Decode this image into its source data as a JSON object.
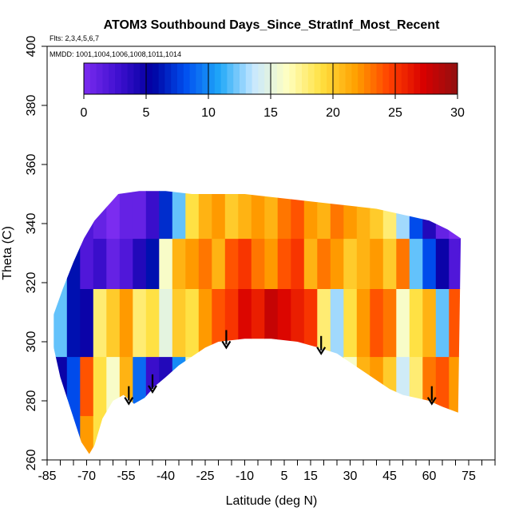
{
  "chart_data": {
    "type": "heatmap",
    "title": "ATOM3 Southbound Days_Since_StratInf_Most_Recent",
    "subtitle_flights": "Flts: 2,3,4,5,6,7",
    "subtitle_dates": "MMDD: 1001,1004,1006,1008,1011,1014",
    "xlabel": "Latitude (deg N)",
    "ylabel": "Theta (C)",
    "xlim": [
      -85,
      85
    ],
    "ylim": [
      260,
      400
    ],
    "x_tick_labels": [
      "-85",
      "-70",
      "-55",
      "-40",
      "-25",
      "-10",
      "5",
      "15",
      "30",
      "45",
      "60",
      "75"
    ],
    "y_tick_labels": [
      "260",
      "280",
      "300",
      "320",
      "340",
      "360",
      "380",
      "400"
    ],
    "colorbar": {
      "range": [
        0,
        30
      ],
      "tick_labels": [
        "0",
        "5",
        "10",
        "15",
        "20",
        "25",
        "30"
      ],
      "colors": [
        "#7b2cf0",
        "#4010d0",
        "#0000a0",
        "#0050f0",
        "#20a8f8",
        "#c8e8ff",
        "#ffffc0",
        "#ffe040",
        "#ffa000",
        "#ff4000",
        "#d80000",
        "#901010"
      ]
    },
    "upper_boundary": [
      [
        -83,
        308
      ],
      [
        -79,
        318
      ],
      [
        -75,
        327
      ],
      [
        -71,
        335
      ],
      [
        -67,
        341
      ],
      [
        -62,
        346
      ],
      [
        -58,
        350
      ],
      [
        -50,
        351
      ],
      [
        -40,
        351
      ],
      [
        -30,
        350
      ],
      [
        -20,
        350
      ],
      [
        -10,
        350
      ],
      [
        0,
        349
      ],
      [
        10,
        348
      ],
      [
        20,
        347
      ],
      [
        30,
        346
      ],
      [
        40,
        345
      ],
      [
        50,
        343
      ],
      [
        60,
        341
      ],
      [
        67,
        338
      ],
      [
        72,
        335
      ]
    ],
    "lower_boundary": [
      [
        -83,
        300
      ],
      [
        -80,
        288
      ],
      [
        -76,
        277
      ],
      [
        -72,
        266
      ],
      [
        -69,
        262
      ],
      [
        -67,
        265
      ],
      [
        -64,
        274
      ],
      [
        -60,
        280
      ],
      [
        -56,
        282
      ],
      [
        -52,
        279
      ],
      [
        -48,
        281
      ],
      [
        -44,
        285
      ],
      [
        -40,
        288
      ],
      [
        -35,
        292
      ],
      [
        -30,
        295
      ],
      [
        -25,
        298
      ],
      [
        -20,
        300
      ],
      [
        -10,
        301
      ],
      [
        0,
        301
      ],
      [
        10,
        300
      ],
      [
        18,
        298
      ],
      [
        25,
        296
      ],
      [
        30,
        293
      ],
      [
        35,
        290
      ],
      [
        40,
        287
      ],
      [
        45,
        284
      ],
      [
        50,
        282
      ],
      [
        55,
        281
      ],
      [
        60,
        280
      ],
      [
        65,
        278
      ],
      [
        71,
        276
      ]
    ],
    "field_bands": [
      {
        "lat": -80,
        "theta_bottom": 260,
        "value": 5
      },
      {
        "lat": -75,
        "theta_bottom": 260,
        "value": 8
      },
      {
        "lat": -70,
        "theta_bottom": 260,
        "value": 22
      },
      {
        "lat": -70,
        "theta_bottom": 275,
        "value": 24
      },
      {
        "lat": -65,
        "theta_bottom": 260,
        "value": 19
      },
      {
        "lat": -60,
        "theta_bottom": 260,
        "value": 16
      },
      {
        "lat": -55,
        "theta_bottom": 260,
        "value": 21
      },
      {
        "lat": -50,
        "theta_bottom": 260,
        "value": 9
      },
      {
        "lat": -45,
        "theta_bottom": 260,
        "value": 3
      },
      {
        "lat": -40,
        "theta_bottom": 260,
        "value": 4
      },
      {
        "lat": -35,
        "theta_bottom": 260,
        "value": 10
      },
      {
        "lat": -30,
        "theta_bottom": 260,
        "value": 17
      },
      {
        "lat": -25,
        "theta_bottom": 260,
        "value": 20
      },
      {
        "lat": -20,
        "theta_bottom": 260,
        "value": 21
      },
      {
        "lat": -15,
        "theta_bottom": 260,
        "value": 22
      },
      {
        "lat": -10,
        "theta_bottom": 260,
        "value": 24
      },
      {
        "lat": -5,
        "theta_bottom": 260,
        "value": 25
      },
      {
        "lat": 0,
        "theta_bottom": 260,
        "value": 27
      },
      {
        "lat": 5,
        "theta_bottom": 260,
        "value": 26
      },
      {
        "lat": 10,
        "theta_bottom": 260,
        "value": 25
      },
      {
        "lat": 15,
        "theta_bottom": 260,
        "value": 24
      },
      {
        "lat": 20,
        "theta_bottom": 260,
        "value": 22
      },
      {
        "lat": 25,
        "theta_bottom": 260,
        "value": 19
      },
      {
        "lat": 30,
        "theta_bottom": 260,
        "value": 16
      },
      {
        "lat": 35,
        "theta_bottom": 260,
        "value": 21
      },
      {
        "lat": 40,
        "theta_bottom": 260,
        "value": 22
      },
      {
        "lat": 45,
        "theta_bottom": 260,
        "value": 20
      },
      {
        "lat": 50,
        "theta_bottom": 260,
        "value": 14
      },
      {
        "lat": 55,
        "theta_bottom": 260,
        "value": 18
      },
      {
        "lat": 60,
        "theta_bottom": 260,
        "value": 23
      },
      {
        "lat": 65,
        "theta_bottom": 260,
        "value": 24
      },
      {
        "lat": 70,
        "theta_bottom": 260,
        "value": 22
      },
      {
        "lat": -80,
        "theta_bottom": 295,
        "value": 12
      },
      {
        "lat": -75,
        "theta_bottom": 295,
        "value": 6
      },
      {
        "lat": -70,
        "theta_bottom": 295,
        "value": 5
      },
      {
        "lat": -65,
        "theta_bottom": 295,
        "value": 18
      },
      {
        "lat": -60,
        "theta_bottom": 295,
        "value": 20
      },
      {
        "lat": -55,
        "theta_bottom": 295,
        "value": 22
      },
      {
        "lat": -50,
        "theta_bottom": 295,
        "value": 18
      },
      {
        "lat": -45,
        "theta_bottom": 295,
        "value": 19
      },
      {
        "lat": -40,
        "theta_bottom": 295,
        "value": 15
      },
      {
        "lat": -35,
        "theta_bottom": 295,
        "value": 20
      },
      {
        "lat": -30,
        "theta_bottom": 295,
        "value": 19
      },
      {
        "lat": -25,
        "theta_bottom": 295,
        "value": 22
      },
      {
        "lat": -20,
        "theta_bottom": 295,
        "value": 24
      },
      {
        "lat": -15,
        "theta_bottom": 295,
        "value": 25
      },
      {
        "lat": -10,
        "theta_bottom": 295,
        "value": 27
      },
      {
        "lat": -5,
        "theta_bottom": 295,
        "value": 26
      },
      {
        "lat": 0,
        "theta_bottom": 295,
        "value": 28
      },
      {
        "lat": 5,
        "theta_bottom": 295,
        "value": 27
      },
      {
        "lat": 10,
        "theta_bottom": 295,
        "value": 26
      },
      {
        "lat": 15,
        "theta_bottom": 295,
        "value": 25
      },
      {
        "lat": 20,
        "theta_bottom": 295,
        "value": 18
      },
      {
        "lat": 25,
        "theta_bottom": 295,
        "value": 13
      },
      {
        "lat": 30,
        "theta_bottom": 295,
        "value": 19
      },
      {
        "lat": 35,
        "theta_bottom": 295,
        "value": 22
      },
      {
        "lat": 40,
        "theta_bottom": 295,
        "value": 24
      },
      {
        "lat": 45,
        "theta_bottom": 295,
        "value": 23
      },
      {
        "lat": 50,
        "theta_bottom": 295,
        "value": 16
      },
      {
        "lat": 55,
        "theta_bottom": 295,
        "value": 19
      },
      {
        "lat": 60,
        "theta_bottom": 295,
        "value": 21
      },
      {
        "lat": 65,
        "theta_bottom": 295,
        "value": 12
      },
      {
        "lat": 70,
        "theta_bottom": 295,
        "value": 24
      },
      {
        "lat": -70,
        "theta_bottom": 318,
        "value": 2
      },
      {
        "lat": -65,
        "theta_bottom": 318,
        "value": 3
      },
      {
        "lat": -60,
        "theta_bottom": 318,
        "value": 1
      },
      {
        "lat": -55,
        "theta_bottom": 318,
        "value": 2
      },
      {
        "lat": -50,
        "theta_bottom": 318,
        "value": 4
      },
      {
        "lat": -45,
        "theta_bottom": 318,
        "value": 6
      },
      {
        "lat": -40,
        "theta_bottom": 318,
        "value": 16
      },
      {
        "lat": -35,
        "theta_bottom": 318,
        "value": 21
      },
      {
        "lat": -30,
        "theta_bottom": 318,
        "value": 22
      },
      {
        "lat": -25,
        "theta_bottom": 318,
        "value": 23
      },
      {
        "lat": -20,
        "theta_bottom": 318,
        "value": 21
      },
      {
        "lat": -15,
        "theta_bottom": 318,
        "value": 24
      },
      {
        "lat": -10,
        "theta_bottom": 318,
        "value": 25
      },
      {
        "lat": -5,
        "theta_bottom": 318,
        "value": 23
      },
      {
        "lat": 0,
        "theta_bottom": 318,
        "value": 22
      },
      {
        "lat": 5,
        "theta_bottom": 318,
        "value": 24
      },
      {
        "lat": 10,
        "theta_bottom": 318,
        "value": 25
      },
      {
        "lat": 15,
        "theta_bottom": 318,
        "value": 21
      },
      {
        "lat": 20,
        "theta_bottom": 318,
        "value": 23
      },
      {
        "lat": 25,
        "theta_bottom": 318,
        "value": 22
      },
      {
        "lat": 30,
        "theta_bottom": 318,
        "value": 20
      },
      {
        "lat": 35,
        "theta_bottom": 318,
        "value": 21
      },
      {
        "lat": 40,
        "theta_bottom": 318,
        "value": 22
      },
      {
        "lat": 45,
        "theta_bottom": 318,
        "value": 20
      },
      {
        "lat": 50,
        "theta_bottom": 318,
        "value": 23
      },
      {
        "lat": 55,
        "theta_bottom": 318,
        "value": 12
      },
      {
        "lat": 60,
        "theta_bottom": 318,
        "value": 8
      },
      {
        "lat": 65,
        "theta_bottom": 318,
        "value": 5
      },
      {
        "lat": 70,
        "theta_bottom": 318,
        "value": 2
      },
      {
        "lat": -65,
        "theta_bottom": 335,
        "value": 1
      },
      {
        "lat": -60,
        "theta_bottom": 335,
        "value": 0
      },
      {
        "lat": -55,
        "theta_bottom": 335,
        "value": 1
      },
      {
        "lat": -50,
        "theta_bottom": 335,
        "value": 1
      },
      {
        "lat": -45,
        "theta_bottom": 335,
        "value": 3
      },
      {
        "lat": -40,
        "theta_bottom": 335,
        "value": 7
      },
      {
        "lat": -35,
        "theta_bottom": 335,
        "value": 12
      },
      {
        "lat": -30,
        "theta_bottom": 335,
        "value": 19
      },
      {
        "lat": -25,
        "theta_bottom": 335,
        "value": 21
      },
      {
        "lat": -20,
        "theta_bottom": 335,
        "value": 22
      },
      {
        "lat": -15,
        "theta_bottom": 335,
        "value": 20
      },
      {
        "lat": -10,
        "theta_bottom": 335,
        "value": 21
      },
      {
        "lat": -5,
        "theta_bottom": 335,
        "value": 22
      },
      {
        "lat": 0,
        "theta_bottom": 335,
        "value": 21
      },
      {
        "lat": 5,
        "theta_bottom": 335,
        "value": 23
      },
      {
        "lat": 10,
        "theta_bottom": 335,
        "value": 24
      },
      {
        "lat": 15,
        "theta_bottom": 335,
        "value": 22
      },
      {
        "lat": 20,
        "theta_bottom": 335,
        "value": 21
      },
      {
        "lat": 25,
        "theta_bottom": 335,
        "value": 23
      },
      {
        "lat": 30,
        "theta_bottom": 335,
        "value": 22
      },
      {
        "lat": 35,
        "theta_bottom": 335,
        "value": 21
      },
      {
        "lat": 40,
        "theta_bottom": 335,
        "value": 20
      },
      {
        "lat": 45,
        "theta_bottom": 335,
        "value": 18
      },
      {
        "lat": 50,
        "theta_bottom": 335,
        "value": 13
      },
      {
        "lat": 55,
        "theta_bottom": 335,
        "value": 8
      },
      {
        "lat": 60,
        "theta_bottom": 335,
        "value": 4
      },
      {
        "lat": 65,
        "theta_bottom": 335,
        "value": 1
      },
      {
        "lat": 70,
        "theta_bottom": 335,
        "value": 0
      }
    ],
    "arrows": [
      {
        "lat": -54,
        "theta_tip": 279
      },
      {
        "lat": -45,
        "theta_tip": 283
      },
      {
        "lat": -17,
        "theta_tip": 298
      },
      {
        "lat": 19,
        "theta_tip": 296
      },
      {
        "lat": 61,
        "theta_tip": 279
      }
    ]
  }
}
